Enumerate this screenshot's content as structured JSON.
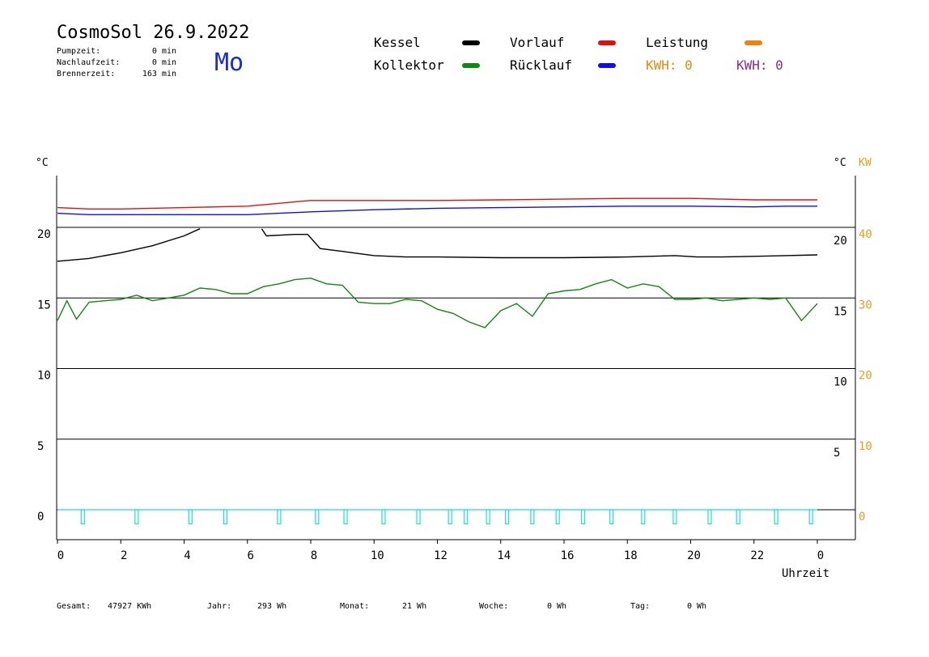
{
  "header": {
    "title": "CosmoSol 26.9.2022",
    "weekday": "Mo",
    "stats": [
      {
        "label": "Pumpzeit:",
        "value": "0 min"
      },
      {
        "label": "Nachlaufzeit:",
        "value": "0 min"
      },
      {
        "label": "Brennerzeit:",
        "value": "163 min"
      }
    ]
  },
  "legend": {
    "kessel": {
      "label": "Kessel",
      "color": "#000000"
    },
    "kollektor": {
      "label": "Kollektor",
      "color": "#118811"
    },
    "vorlauf": {
      "label": "Vorlauf",
      "color": "#e01010"
    },
    "ruecklauf": {
      "label": "Rücklauf",
      "color": "#1010e0"
    },
    "leistung": {
      "label": "Leistung",
      "color": "#f08010"
    },
    "kwh1": {
      "label": "KWH: 0",
      "color": "#e08a10"
    },
    "kwh2": {
      "label": "KWH: 0",
      "color": "#8a2b8a"
    }
  },
  "footer": {
    "gesamt_label": "Gesamt:",
    "gesamt_value": "47927 KWh",
    "jahr_label": "Jahr:",
    "jahr_value": "293 Wh",
    "monat_label": "Monat:",
    "monat_value": "21 Wh",
    "woche_label": "Woche:",
    "woche_value": "0 Wh",
    "tag_label": "Tag:",
    "tag_value": "0 Wh"
  },
  "chart_data": {
    "type": "line",
    "xlabel": "Uhrzeit",
    "ylabel_left": "°C",
    "ylabel_right": "°C",
    "ylabel_right2": "KW",
    "xlim": [
      0,
      24
    ],
    "x_ticks": [
      "0",
      "2",
      "4",
      "6",
      "8",
      "10",
      "12",
      "14",
      "16",
      "18",
      "20",
      "22",
      "0"
    ],
    "y_ticks_left": [
      "20",
      "15",
      "10",
      "5",
      "0"
    ],
    "y_ticks_right": [
      "20",
      "15",
      "10",
      "5"
    ],
    "y_ticks_kw": [
      "40",
      "30",
      "20",
      "10",
      "0"
    ],
    "grid": "horizontal",
    "series": [
      {
        "name": "Vorlauf",
        "color": "#e01010",
        "x": [
          0,
          1,
          2,
          3,
          4,
          5,
          6,
          7,
          7.7,
          8,
          10,
          12,
          14,
          16,
          18,
          20,
          21,
          22,
          23,
          24
        ],
        "y": [
          21.4,
          21.3,
          21.3,
          21.35,
          21.4,
          21.45,
          21.5,
          21.7,
          21.85,
          21.9,
          21.9,
          21.9,
          21.95,
          22.0,
          22.05,
          22.05,
          22.0,
          21.95,
          21.95,
          21.95
        ]
      },
      {
        "name": "Rücklauf",
        "color": "#1010e0",
        "x": [
          0,
          1,
          2,
          3,
          4,
          5,
          6,
          7,
          8,
          10,
          12,
          14,
          16,
          18,
          20,
          22,
          23,
          24
        ],
        "y": [
          21.0,
          20.9,
          20.9,
          20.9,
          20.9,
          20.9,
          20.9,
          21.0,
          21.1,
          21.25,
          21.35,
          21.4,
          21.45,
          21.5,
          21.5,
          21.45,
          21.5,
          21.5
        ]
      },
      {
        "name": "Kessel",
        "color": "#000000",
        "x": [
          0,
          1,
          2,
          3,
          4,
          4.5,
          4.6,
          6.4,
          6.45,
          6.6,
          7.5,
          7.9,
          8.1,
          8.3,
          9,
          10,
          11,
          12,
          14,
          16,
          18,
          19.5,
          20.2,
          21,
          22,
          23,
          24
        ],
        "y": [
          17.6,
          17.8,
          18.2,
          18.7,
          19.4,
          19.9,
          null,
          null,
          19.9,
          19.4,
          19.5,
          19.5,
          19.0,
          18.5,
          18.3,
          18.0,
          17.9,
          17.9,
          17.85,
          17.85,
          17.9,
          18.0,
          17.9,
          17.9,
          17.95,
          18.0,
          18.05
        ]
      },
      {
        "name": "Kollektor",
        "color": "#118811",
        "x": [
          0,
          0.3,
          0.6,
          1,
          1.5,
          2,
          2.5,
          3,
          3.5,
          4,
          4.5,
          5,
          5.5,
          6,
          6.5,
          7,
          7.5,
          8,
          8.5,
          9,
          9.5,
          10,
          10.5,
          11,
          11.5,
          12,
          12.5,
          13,
          13.5,
          14,
          14.5,
          15,
          15.5,
          16,
          16.5,
          17,
          17.5,
          18,
          18.5,
          19,
          19.5,
          20,
          20.5,
          21,
          21.5,
          22,
          22.5,
          23,
          23.5,
          24
        ],
        "y": [
          13.4,
          14.8,
          13.5,
          14.7,
          14.8,
          14.9,
          15.2,
          14.8,
          15.0,
          15.2,
          15.7,
          15.6,
          15.3,
          15.3,
          15.8,
          16.0,
          16.3,
          16.4,
          16.0,
          15.9,
          14.7,
          14.6,
          14.6,
          14.9,
          14.8,
          14.2,
          13.9,
          13.3,
          12.9,
          14.1,
          14.6,
          13.7,
          15.3,
          15.5,
          15.6,
          16.0,
          16.3,
          15.7,
          16.0,
          15.8,
          14.9,
          14.9,
          15.0,
          14.8,
          14.9,
          15.0,
          14.9,
          15.0,
          13.4,
          14.6
        ]
      },
      {
        "name": "Leistung",
        "color": "#20dcdc",
        "type": "pulse",
        "pulses_x": [
          0.8,
          2.5,
          4.2,
          5.3,
          7.0,
          8.2,
          9.1,
          10.3,
          11.4,
          12.4,
          12.9,
          13.6,
          14.2,
          15.0,
          15.8,
          16.6,
          17.5,
          18.5,
          19.5,
          20.6,
          21.5,
          22.7,
          23.8
        ],
        "baseline": 0,
        "depth": -1
      }
    ]
  }
}
